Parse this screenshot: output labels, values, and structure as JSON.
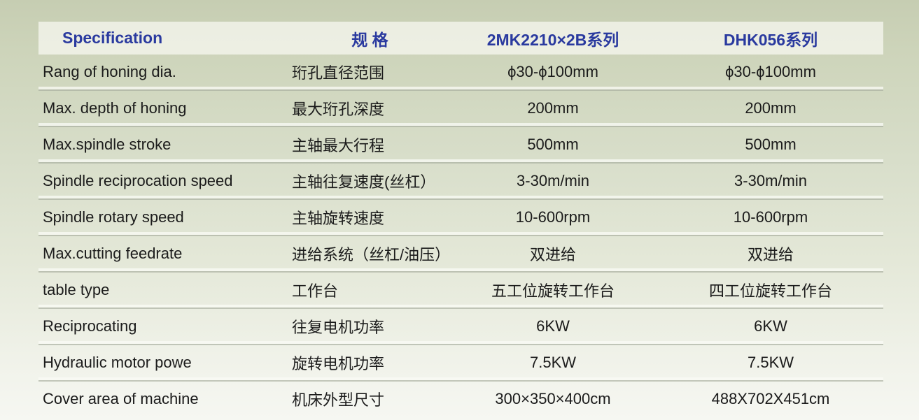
{
  "table": {
    "headers": [
      {
        "label": "Specification"
      },
      {
        "label": "规 格"
      },
      {
        "label": "2MK2210×2B系列"
      },
      {
        "label": "DHK056系列"
      }
    ],
    "rows": [
      {
        "en": "Rang of honing dia.",
        "cn": "珩孔直径范围",
        "v1": "ϕ30-ϕ100mm",
        "v2": "ϕ30-ϕ100mm"
      },
      {
        "en": "Max. depth of honing",
        "cn": "最大珩孔深度",
        "v1": "200mm",
        "v2": "200mm"
      },
      {
        "en": "Max.spindle stroke",
        "cn": "主轴最大行程",
        "v1": "500mm",
        "v2": "500mm"
      },
      {
        "en": "Spindle reciprocation speed",
        "cn": "主轴往复速度(丝杠）",
        "v1": "3-30m/min",
        "v2": "3-30m/min"
      },
      {
        "en": "Spindle rotary speed",
        "cn": "主轴旋转速度",
        "v1": "10-600rpm",
        "v2": "10-600rpm"
      },
      {
        "en": "Max.cutting feedrate",
        "cn": "进给系统（丝杠/油压）",
        "v1": "双进给",
        "v2": "双进给"
      },
      {
        "en": "table type",
        "cn": "工作台",
        "v1": "五工位旋转工作台",
        "v2": "四工位旋转工作台"
      },
      {
        "en": "Reciprocating",
        "cn": "往复电机功率",
        "v1": "6KW",
        "v2": "6KW"
      },
      {
        "en": "Hydraulic motor powe",
        "cn": "旋转电机功率",
        "v1": "7.5KW",
        "v2": "7.5KW"
      },
      {
        "en": "Cover area of machine",
        "cn": "机床外型尺寸",
        "v1": "300×350×400cm",
        "v2": "488X702X451cm"
      }
    ],
    "colors": {
      "header_text_blue": "#2a3a9f",
      "body_text": "#1b1b1b",
      "header_band": "#f2f3ea",
      "page_top_green": "#c6cdb2",
      "page_bottom": "#f6f7f2",
      "divider_gray": "#a8ae9e",
      "divider_light": "#faf bf5"
    }
  }
}
